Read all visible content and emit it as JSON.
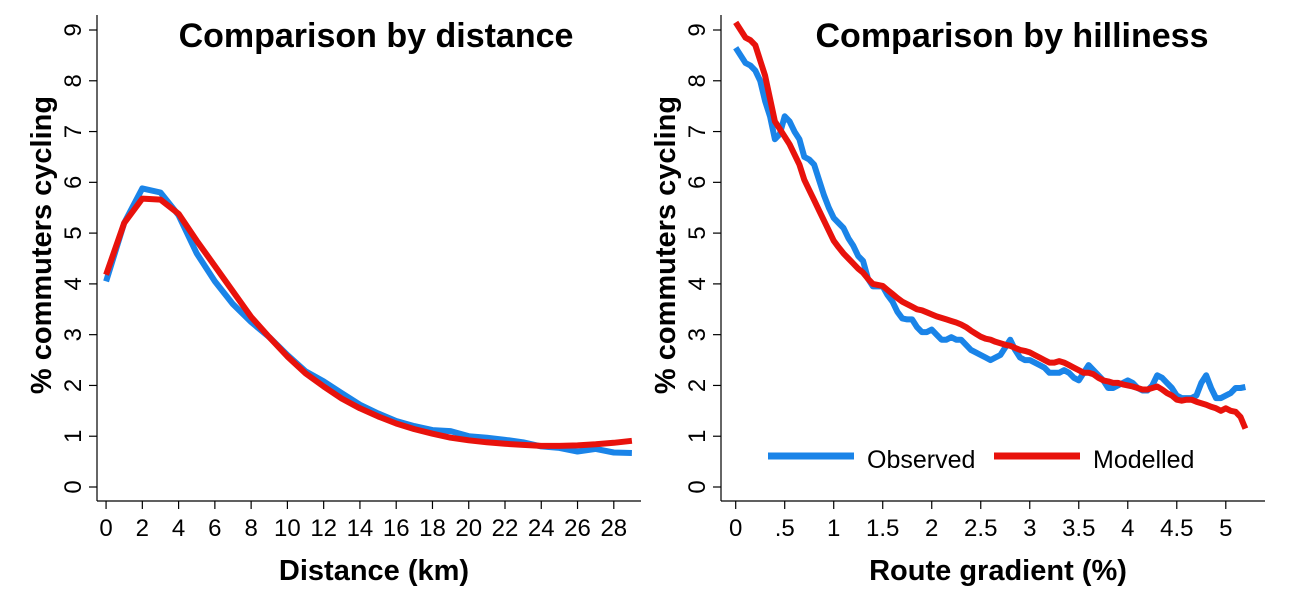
{
  "chart_data": [
    {
      "type": "line",
      "title": "Comparison by distance",
      "xlabel": "Distance (km)",
      "ylabel": "% commuters cycling",
      "xlim": [
        -0.5,
        29.5
      ],
      "ylim": [
        0,
        9
      ],
      "xticks": [
        0,
        2,
        4,
        6,
        8,
        10,
        12,
        14,
        16,
        18,
        20,
        22,
        24,
        26,
        28
      ],
      "xtick_labels": [
        "0",
        "2",
        "4",
        "6",
        "8",
        "10",
        "12",
        "14",
        "16",
        "18",
        "20",
        "22",
        "24",
        "26",
        "28"
      ],
      "yticks": [
        0,
        1,
        2,
        3,
        4,
        5,
        6,
        7,
        8,
        9
      ],
      "ytick_labels": [
        "0",
        "1",
        "2",
        "3",
        "4",
        "5",
        "6",
        "7",
        "8",
        "9"
      ],
      "series": [
        {
          "name": "Observed",
          "color": "#1a84e8",
          "x": [
            0,
            1,
            2,
            3,
            4,
            5,
            6,
            7,
            8,
            9,
            10,
            11,
            12,
            13,
            14,
            15,
            16,
            17,
            18,
            19,
            20,
            21,
            22,
            23,
            24,
            25,
            26,
            27,
            28,
            29
          ],
          "values": [
            4.05,
            5.2,
            5.88,
            5.8,
            5.35,
            4.6,
            4.05,
            3.6,
            3.25,
            2.95,
            2.6,
            2.28,
            2.08,
            1.85,
            1.62,
            1.45,
            1.3,
            1.2,
            1.12,
            1.1,
            1.0,
            0.97,
            0.93,
            0.88,
            0.8,
            0.77,
            0.7,
            0.75,
            0.68,
            0.67
          ]
        },
        {
          "name": "Modelled",
          "color": "#e8120c",
          "x": [
            0,
            1,
            2,
            3,
            4,
            5,
            6,
            7,
            8,
            9,
            10,
            11,
            12,
            13,
            14,
            15,
            16,
            17,
            18,
            19,
            20,
            21,
            22,
            23,
            24,
            25,
            26,
            27,
            28,
            29
          ],
          "values": [
            4.18,
            5.2,
            5.68,
            5.66,
            5.38,
            4.85,
            4.35,
            3.85,
            3.35,
            2.95,
            2.57,
            2.24,
            1.98,
            1.74,
            1.55,
            1.39,
            1.25,
            1.14,
            1.05,
            0.97,
            0.92,
            0.88,
            0.85,
            0.83,
            0.81,
            0.81,
            0.82,
            0.84,
            0.87,
            0.91
          ]
        }
      ]
    },
    {
      "type": "line",
      "title": "Comparison by hilliness",
      "xlabel": "Route gradient (%)",
      "ylabel": "% commuters cycling",
      "xlim": [
        -0.15,
        5.4
      ],
      "ylim": [
        0,
        9
      ],
      "xticks": [
        0,
        0.5,
        1,
        1.5,
        2,
        2.5,
        3,
        3.5,
        4,
        4.5,
        5
      ],
      "xtick_labels": [
        "0",
        ".5",
        "1",
        "1.5",
        "2",
        "2.5",
        "3",
        "3.5",
        "4",
        "4.5",
        "5"
      ],
      "yticks": [
        0,
        1,
        2,
        3,
        4,
        5,
        6,
        7,
        8,
        9
      ],
      "ytick_labels": [
        "0",
        "1",
        "2",
        "3",
        "4",
        "5",
        "6",
        "7",
        "8",
        "9"
      ],
      "legend": {
        "placement": "bottom",
        "entries": [
          "Observed",
          "Modelled"
        ]
      },
      "series": [
        {
          "name": "Observed",
          "color": "#1a84e8",
          "x": [
            0,
            0.05,
            0.1,
            0.15,
            0.2,
            0.25,
            0.3,
            0.35,
            0.4,
            0.45,
            0.5,
            0.55,
            0.6,
            0.65,
            0.7,
            0.75,
            0.8,
            0.85,
            0.9,
            0.95,
            1.0,
            1.05,
            1.1,
            1.15,
            1.2,
            1.25,
            1.3,
            1.35,
            1.4,
            1.45,
            1.5,
            1.55,
            1.6,
            1.65,
            1.7,
            1.75,
            1.8,
            1.85,
            1.9,
            1.95,
            2.0,
            2.05,
            2.1,
            2.15,
            2.2,
            2.25,
            2.3,
            2.35,
            2.4,
            2.45,
            2.5,
            2.55,
            2.6,
            2.65,
            2.7,
            2.75,
            2.8,
            2.85,
            2.9,
            2.95,
            3.0,
            3.05,
            3.1,
            3.15,
            3.2,
            3.25,
            3.3,
            3.35,
            3.4,
            3.45,
            3.5,
            3.55,
            3.6,
            3.65,
            3.7,
            3.75,
            3.8,
            3.85,
            3.9,
            3.95,
            4.0,
            4.05,
            4.1,
            4.15,
            4.2,
            4.25,
            4.3,
            4.35,
            4.4,
            4.45,
            4.5,
            4.55,
            4.6,
            4.65,
            4.7,
            4.75,
            4.8,
            4.85,
            4.9,
            4.95,
            5.0,
            5.05,
            5.1,
            5.15,
            5.2
          ],
          "values": [
            8.65,
            8.5,
            8.35,
            8.3,
            8.2,
            8.0,
            7.6,
            7.3,
            6.85,
            6.95,
            7.3,
            7.2,
            7.0,
            6.85,
            6.5,
            6.45,
            6.35,
            6.05,
            5.75,
            5.5,
            5.3,
            5.2,
            5.1,
            4.9,
            4.75,
            4.55,
            4.45,
            4.1,
            3.95,
            3.95,
            3.95,
            3.78,
            3.65,
            3.45,
            3.32,
            3.3,
            3.3,
            3.15,
            3.05,
            3.05,
            3.1,
            3.0,
            2.9,
            2.9,
            2.95,
            2.9,
            2.9,
            2.8,
            2.7,
            2.65,
            2.6,
            2.55,
            2.5,
            2.55,
            2.6,
            2.75,
            2.9,
            2.7,
            2.55,
            2.5,
            2.5,
            2.45,
            2.4,
            2.35,
            2.25,
            2.25,
            2.25,
            2.3,
            2.25,
            2.15,
            2.1,
            2.25,
            2.4,
            2.3,
            2.2,
            2.1,
            1.95,
            1.95,
            2.0,
            2.05,
            2.1,
            2.05,
            1.95,
            1.9,
            1.9,
            2.0,
            2.2,
            2.15,
            2.05,
            1.95,
            1.8,
            1.75,
            1.75,
            1.75,
            1.8,
            2.05,
            2.2,
            1.95,
            1.75,
            1.75,
            1.8,
            1.85,
            1.95,
            1.95,
            1.97
          ]
        },
        {
          "name": "Modelled",
          "color": "#e8120c",
          "x": [
            0,
            0.05,
            0.1,
            0.15,
            0.2,
            0.25,
            0.3,
            0.35,
            0.4,
            0.45,
            0.5,
            0.55,
            0.6,
            0.65,
            0.7,
            0.75,
            0.8,
            0.85,
            0.9,
            0.95,
            1.0,
            1.05,
            1.1,
            1.15,
            1.2,
            1.25,
            1.3,
            1.35,
            1.4,
            1.45,
            1.5,
            1.55,
            1.6,
            1.65,
            1.7,
            1.75,
            1.8,
            1.85,
            1.9,
            1.95,
            2.0,
            2.05,
            2.1,
            2.15,
            2.2,
            2.25,
            2.3,
            2.35,
            2.4,
            2.45,
            2.5,
            2.55,
            2.6,
            2.65,
            2.7,
            2.75,
            2.8,
            2.85,
            2.9,
            2.95,
            3.0,
            3.05,
            3.1,
            3.15,
            3.2,
            3.25,
            3.3,
            3.35,
            3.4,
            3.45,
            3.5,
            3.55,
            3.6,
            3.65,
            3.7,
            3.75,
            3.8,
            3.85,
            3.9,
            3.95,
            4.0,
            4.05,
            4.1,
            4.15,
            4.2,
            4.25,
            4.3,
            4.35,
            4.4,
            4.45,
            4.5,
            4.55,
            4.6,
            4.65,
            4.7,
            4.75,
            4.8,
            4.85,
            4.9,
            4.95,
            5.0,
            5.05,
            5.1,
            5.15,
            5.2
          ],
          "values": [
            9.15,
            9.0,
            8.85,
            8.8,
            8.7,
            8.4,
            8.1,
            7.65,
            7.2,
            7.05,
            6.9,
            6.75,
            6.55,
            6.35,
            6.05,
            5.85,
            5.65,
            5.45,
            5.25,
            5.05,
            4.85,
            4.72,
            4.6,
            4.5,
            4.4,
            4.3,
            4.22,
            4.1,
            4.0,
            3.98,
            3.96,
            3.88,
            3.8,
            3.72,
            3.65,
            3.6,
            3.55,
            3.5,
            3.48,
            3.44,
            3.4,
            3.36,
            3.33,
            3.3,
            3.27,
            3.24,
            3.2,
            3.15,
            3.08,
            3.02,
            2.96,
            2.92,
            2.9,
            2.86,
            2.83,
            2.8,
            2.78,
            2.74,
            2.7,
            2.68,
            2.65,
            2.6,
            2.55,
            2.5,
            2.45,
            2.45,
            2.48,
            2.45,
            2.4,
            2.35,
            2.3,
            2.25,
            2.25,
            2.22,
            2.15,
            2.1,
            2.08,
            2.05,
            2.05,
            2.02,
            2.0,
            1.98,
            1.95,
            1.92,
            1.92,
            1.95,
            1.98,
            1.92,
            1.85,
            1.8,
            1.72,
            1.7,
            1.72,
            1.72,
            1.68,
            1.65,
            1.62,
            1.58,
            1.55,
            1.5,
            1.55,
            1.5,
            1.48,
            1.38,
            1.15
          ]
        }
      ]
    }
  ]
}
